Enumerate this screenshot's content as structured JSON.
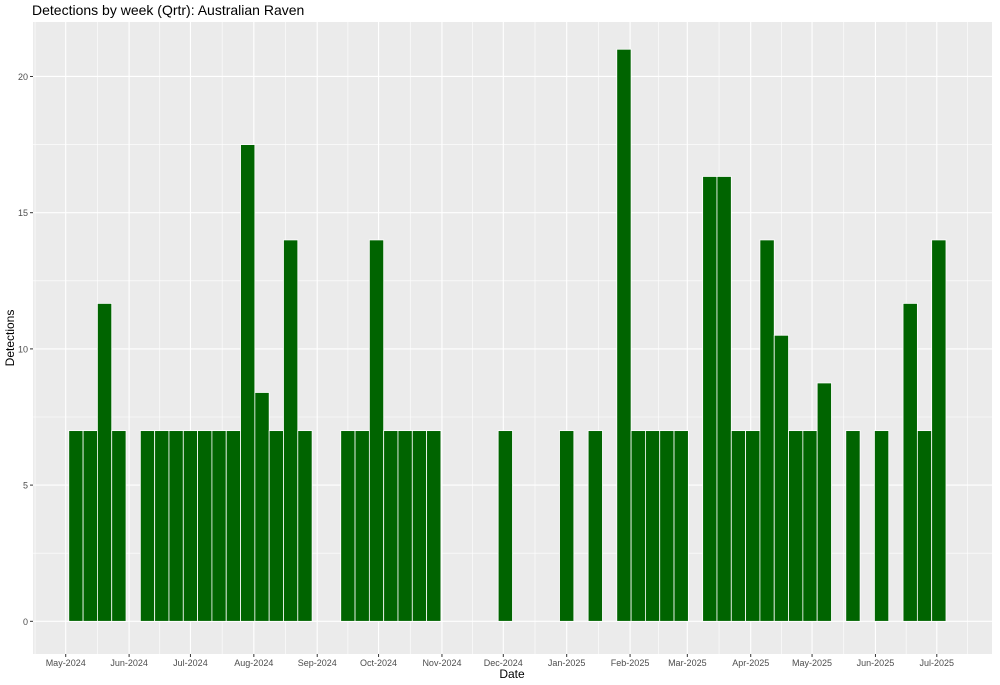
{
  "chart_data": {
    "type": "bar",
    "title": "Detections by week (Qrtr): Australian Raven",
    "xlabel": "Date",
    "ylabel": "Detections",
    "ylim": [
      -1.2,
      22.0
    ],
    "xlim": [
      "2024-04-15",
      "2025-07-28"
    ],
    "grid": true,
    "bar_color": "#006400",
    "panel_background": "#EBEBEB",
    "grid_color": "#FFFFFF",
    "y_ticks": [
      0,
      5,
      10,
      15,
      20
    ],
    "x_ticks": [
      {
        "date": "2024-05-01",
        "label": "May-2024"
      },
      {
        "date": "2024-06-01",
        "label": "Jun-2024"
      },
      {
        "date": "2024-07-01",
        "label": "Jul-2024"
      },
      {
        "date": "2024-08-01",
        "label": "Aug-2024"
      },
      {
        "date": "2024-09-01",
        "label": "Sep-2024"
      },
      {
        "date": "2024-10-01",
        "label": "Oct-2024"
      },
      {
        "date": "2024-11-01",
        "label": "Nov-2024"
      },
      {
        "date": "2024-12-01",
        "label": "Dec-2024"
      },
      {
        "date": "2025-01-01",
        "label": "Jan-2025"
      },
      {
        "date": "2025-02-01",
        "label": "Feb-2025"
      },
      {
        "date": "2025-03-01",
        "label": "Mar-2025"
      },
      {
        "date": "2025-04-01",
        "label": "Apr-2025"
      },
      {
        "date": "2025-05-01",
        "label": "May-2025"
      },
      {
        "date": "2025-06-01",
        "label": "Jun-2025"
      },
      {
        "date": "2025-07-01",
        "label": "Jul-2025"
      }
    ],
    "x": [
      "2024-05-06",
      "2024-05-13",
      "2024-05-20",
      "2024-05-27",
      "2024-06-10",
      "2024-06-17",
      "2024-06-24",
      "2024-07-01",
      "2024-07-08",
      "2024-07-15",
      "2024-07-22",
      "2024-07-29",
      "2024-08-05",
      "2024-08-12",
      "2024-08-19",
      "2024-08-26",
      "2024-09-16",
      "2024-09-23",
      "2024-09-30",
      "2024-10-07",
      "2024-10-14",
      "2024-10-21",
      "2024-10-28",
      "2024-12-02",
      "2025-01-01",
      "2025-01-15",
      "2025-01-29",
      "2025-02-05",
      "2025-02-12",
      "2025-02-19",
      "2025-02-26",
      "2025-03-12",
      "2025-03-19",
      "2025-03-26",
      "2025-04-02",
      "2025-04-09",
      "2025-04-16",
      "2025-04-23",
      "2025-04-30",
      "2025-05-07",
      "2025-05-21",
      "2025-06-04",
      "2025-06-18",
      "2025-06-25",
      "2025-07-02"
    ],
    "values": [
      7,
      7,
      11.67,
      7,
      7,
      7,
      7,
      7,
      7,
      7,
      7,
      17.5,
      8.4,
      7,
      14,
      7,
      7,
      7,
      14,
      7,
      7,
      7,
      7,
      7,
      7,
      7,
      21,
      7,
      7,
      7,
      7,
      16.33,
      16.33,
      7,
      7,
      14,
      10.5,
      7,
      7,
      8.75,
      7,
      7,
      11.67,
      7,
      14
    ]
  }
}
